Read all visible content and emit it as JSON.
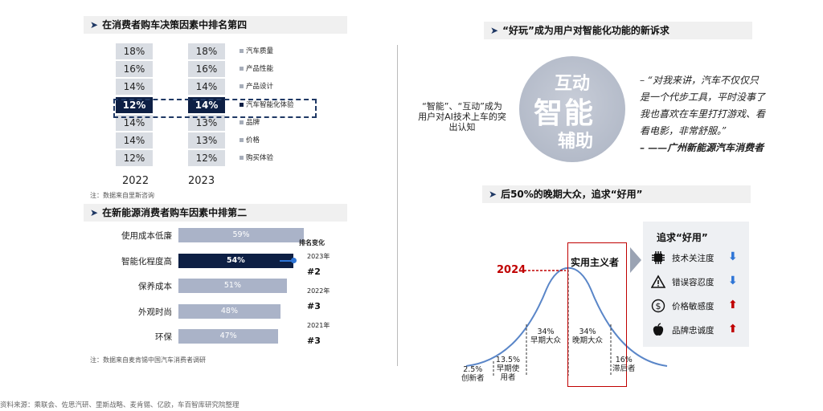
{
  "left_top": {
    "header": "在消费者购车决策因素中排名第四",
    "note": "注：数据来自里斯咨询",
    "chart_data": {
      "type": "table",
      "columns": [
        "2022",
        "2023"
      ],
      "rows": [
        {
          "factor": "汽车质量",
          "values": [
            "18%",
            "18%"
          ]
        },
        {
          "factor": "产品性能",
          "values": [
            "16%",
            "16%"
          ]
        },
        {
          "factor": "产品设计",
          "values": [
            "14%",
            "14%"
          ]
        },
        {
          "factor": "汽车智能化体验",
          "values": [
            "12%",
            "14%"
          ]
        },
        {
          "factor": "品牌",
          "values": [
            "14%",
            "13%"
          ]
        },
        {
          "factor": "价格",
          "values": [
            "14%",
            "13%"
          ]
        },
        {
          "factor": "购买体验",
          "values": [
            "12%",
            "12%"
          ]
        }
      ],
      "highlight_row": 3
    }
  },
  "left_bottom": {
    "header": "在新能源消费者购车因素中排第二",
    "note": "注：数据来自麦肯锡中国汽车消费者调研",
    "rank_title": "排名变化",
    "ranks": [
      {
        "year": "2023年",
        "rank": "#2"
      },
      {
        "year": "2022年",
        "rank": "#3"
      },
      {
        "year": "2021年",
        "rank": "#3"
      }
    ],
    "chart_data": {
      "type": "bar",
      "orientation": "horizontal",
      "categories": [
        "使用成本低廉",
        "智能化程度高",
        "保养成本",
        "外观时尚",
        "环保"
      ],
      "values": [
        59,
        54,
        51,
        48,
        47
      ],
      "labels": [
        "59%",
        "54%",
        "51%",
        "48%",
        "47%"
      ],
      "xlim": [
        0,
        59
      ],
      "highlight_index": 1
    }
  },
  "right_top": {
    "header": "“好玩”成为用户对智能化功能的新诉求",
    "side_label": "“智能”、“互动”成为用户对AI技术上车的突出认知",
    "cloud_words": [
      "互动",
      "智能",
      "辅助"
    ],
    "quote_lines": [
      "– “对我来讲，汽车不仅仅只",
      "是一个代步工具，平时没事了",
      "我也喜欢在车里打打游戏、看",
      "看电影，非常舒服。”"
    ],
    "quote_source": "– ——广州新能源汽车消费者"
  },
  "right_bottom": {
    "header": "后50%的晚期大众，追求“好用”",
    "year_marker": "2024",
    "highlight_label": "实用主义者",
    "chart_data": {
      "type": "area",
      "segments": [
        {
          "pct": "2.5%",
          "label": "创新者"
        },
        {
          "pct": "13.5%",
          "label": "早期使用者"
        },
        {
          "pct": "34%",
          "label": "早期大众"
        },
        {
          "pct": "34%",
          "label": "晚期大众"
        },
        {
          "pct": "16%",
          "label": "滞后者"
        }
      ]
    },
    "want": {
      "title": "追求“好用”",
      "items": [
        {
          "label": "技术关注度",
          "icon": "chip-icon",
          "trend": "down",
          "color": "#2e75d6"
        },
        {
          "label": "错误容忍度",
          "icon": "warning-icon",
          "trend": "down",
          "color": "#2e75d6"
        },
        {
          "label": "价格敏感度",
          "icon": "dollar-icon",
          "trend": "up",
          "color": "#c00000"
        },
        {
          "label": "品牌忠诚度",
          "icon": "apple-icon",
          "trend": "up",
          "color": "#c00000"
        }
      ]
    }
  },
  "footer": "资料来源：乘联会、佐思汽研、里斯战略、麦肯锡、亿欧，车百智库研究院整理",
  "colors": {
    "navy": "#0d1f44",
    "gray_cell": "#d9dde3",
    "bar": "#aab3c8",
    "red": "#c00000",
    "blue": "#2e75d6"
  }
}
